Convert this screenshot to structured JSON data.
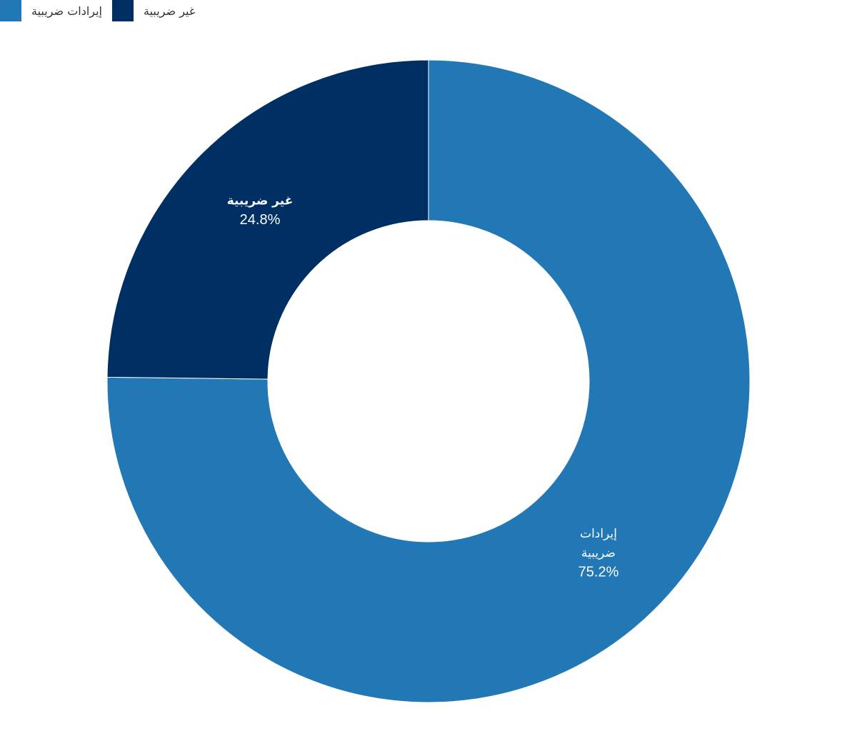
{
  "chart_data": {
    "type": "pie",
    "donut": true,
    "title": "",
    "legend_position": "top-left",
    "slices": [
      {
        "label": "إيرادات ضريبية",
        "label_lines": [
          "إيرادات",
          "ضريبية"
        ],
        "value": 75.2,
        "value_text": "75.2%",
        "color": "#2178b4"
      },
      {
        "label": "غير ضريبية",
        "label_lines": [
          "غير ضريبية"
        ],
        "value": 24.8,
        "value_text": "24.8%",
        "color": "#003063"
      }
    ]
  }
}
